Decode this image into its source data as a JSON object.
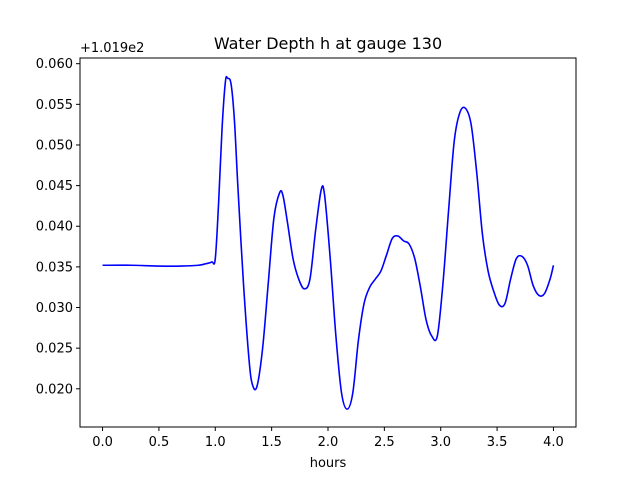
{
  "chart_data": {
    "type": "line",
    "title": "Water Depth h at gauge 130",
    "xlabel": "hours",
    "ylabel": "",
    "y_offset_label": "+1.019e2",
    "xlim": [
      -0.2,
      4.2
    ],
    "ylim": [
      0.0153,
      0.0607
    ],
    "x_ticks": [
      0.0,
      0.5,
      1.0,
      1.5,
      2.0,
      2.5,
      3.0,
      3.5,
      4.0
    ],
    "x_tick_labels": [
      "0.0",
      "0.5",
      "1.0",
      "1.5",
      "2.0",
      "2.5",
      "3.0",
      "3.5",
      "4.0"
    ],
    "y_ticks": [
      0.02,
      0.025,
      0.03,
      0.035,
      0.04,
      0.045,
      0.05,
      0.055,
      0.06
    ],
    "y_tick_labels": [
      "0.020",
      "0.025",
      "0.030",
      "0.035",
      "0.040",
      "0.045",
      "0.050",
      "0.055",
      "0.060"
    ],
    "grid": false,
    "series": [
      {
        "color": "#0000ff",
        "x": [
          0.0,
          0.25,
          0.5,
          0.7,
          0.85,
          0.92,
          0.97,
          1.0,
          1.03,
          1.06,
          1.09,
          1.11,
          1.14,
          1.17,
          1.2,
          1.25,
          1.3,
          1.33,
          1.37,
          1.42,
          1.47,
          1.52,
          1.57,
          1.6,
          1.64,
          1.69,
          1.74,
          1.79,
          1.84,
          1.89,
          1.94,
          1.97,
          2.02,
          2.07,
          2.12,
          2.17,
          2.22,
          2.27,
          2.32,
          2.37,
          2.42,
          2.47,
          2.52,
          2.57,
          2.62,
          2.67,
          2.72,
          2.77,
          2.82,
          2.87,
          2.92,
          2.97,
          3.02,
          3.07,
          3.12,
          3.17,
          3.22,
          3.27,
          3.32,
          3.37,
          3.42,
          3.47,
          3.52,
          3.57,
          3.62,
          3.67,
          3.72,
          3.77,
          3.82,
          3.87,
          3.92,
          3.97,
          4.0
        ],
        "y": [
          0.0352,
          0.0352,
          0.0351,
          0.0351,
          0.0352,
          0.0354,
          0.0356,
          0.036,
          0.043,
          0.052,
          0.0578,
          0.0582,
          0.0575,
          0.053,
          0.045,
          0.033,
          0.0235,
          0.0205,
          0.0203,
          0.025,
          0.033,
          0.041,
          0.0441,
          0.0438,
          0.0405,
          0.036,
          0.0335,
          0.0323,
          0.0335,
          0.0395,
          0.0445,
          0.0438,
          0.036,
          0.0265,
          0.0195,
          0.0175,
          0.0195,
          0.026,
          0.0305,
          0.0325,
          0.0335,
          0.0345,
          0.0365,
          0.0385,
          0.0388,
          0.0382,
          0.0378,
          0.036,
          0.0325,
          0.0285,
          0.0265,
          0.0265,
          0.033,
          0.042,
          0.0505,
          0.054,
          0.0545,
          0.0525,
          0.0465,
          0.039,
          0.0345,
          0.032,
          0.0303,
          0.0305,
          0.0335,
          0.036,
          0.0363,
          0.0352,
          0.0327,
          0.0315,
          0.0317,
          0.0335,
          0.0352
        ]
      }
    ]
  }
}
